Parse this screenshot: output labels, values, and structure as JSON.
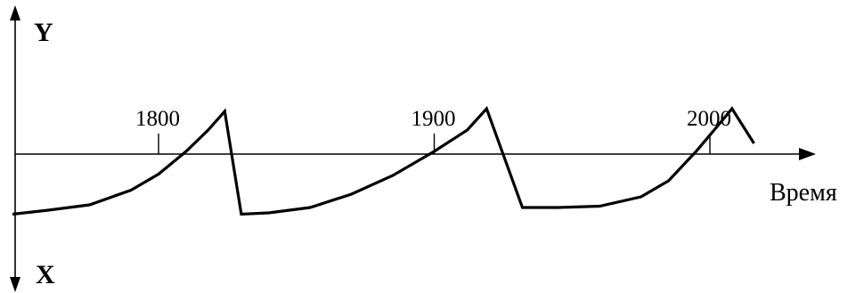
{
  "chart_data": {
    "type": "line",
    "title": "",
    "xlabel": "Время",
    "ylabel_up": "Y",
    "ylabel_down": "X",
    "ticks": [
      {
        "value": 1800,
        "label": "1800"
      },
      {
        "value": 1900,
        "label": "1900"
      },
      {
        "value": 2000,
        "label": "2000"
      }
    ],
    "grid": false,
    "series": [
      {
        "color": "#000000",
        "points": [
          {
            "x": 1747,
            "y": -0.45
          },
          {
            "x": 1760,
            "y": -0.42
          },
          {
            "x": 1775,
            "y": -0.38
          },
          {
            "x": 1790,
            "y": -0.27
          },
          {
            "x": 1800,
            "y": -0.15
          },
          {
            "x": 1810,
            "y": 0.02
          },
          {
            "x": 1818,
            "y": 0.18
          },
          {
            "x": 1824,
            "y": 0.32
          },
          {
            "x": 1830,
            "y": -0.45
          },
          {
            "x": 1840,
            "y": -0.44
          },
          {
            "x": 1855,
            "y": -0.4
          },
          {
            "x": 1870,
            "y": -0.3
          },
          {
            "x": 1885,
            "y": -0.16
          },
          {
            "x": 1900,
            "y": 0.02
          },
          {
            "x": 1912,
            "y": 0.18
          },
          {
            "x": 1919,
            "y": 0.34
          },
          {
            "x": 1932,
            "y": -0.4
          },
          {
            "x": 1945,
            "y": -0.4
          },
          {
            "x": 1960,
            "y": -0.39
          },
          {
            "x": 1975,
            "y": -0.32
          },
          {
            "x": 1985,
            "y": -0.2
          },
          {
            "x": 1995,
            "y": 0.02
          },
          {
            "x": 2004,
            "y": 0.24
          },
          {
            "x": 2008,
            "y": 0.34
          },
          {
            "x": 2016,
            "y": 0.08
          }
        ]
      }
    ]
  }
}
